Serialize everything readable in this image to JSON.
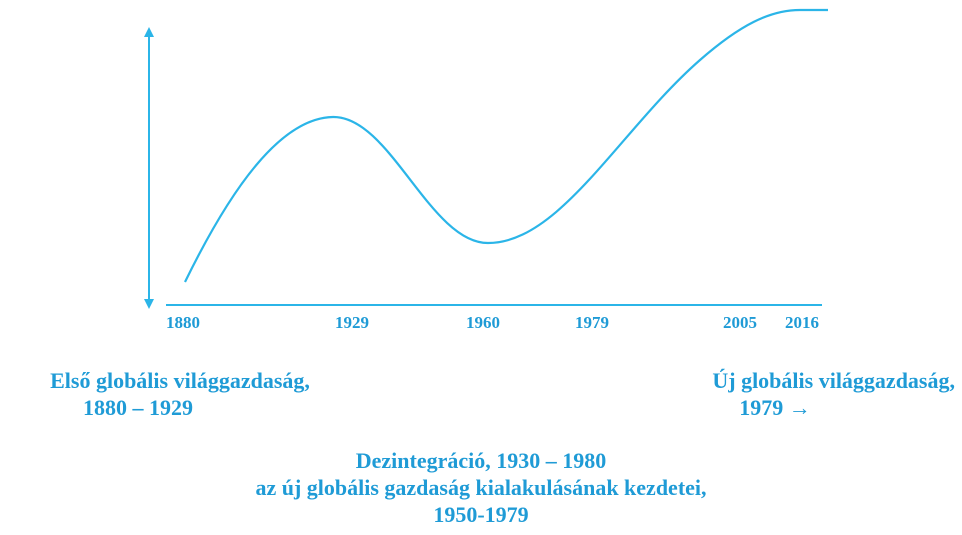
{
  "axis_labels": [
    "1880",
    "1929",
    "1960",
    "1979",
    "2005",
    "2016"
  ],
  "left_caption": [
    "Első globális világgazdaság,",
    "1880 – 1929"
  ],
  "right_caption": [
    "Új globális világgazdaság,",
    "1979 →"
  ],
  "center_caption": [
    "Dezintegráció, 1930 – 1980",
    "az új globális gazdaság kialakulásának kezdetei,",
    "1950-1979"
  ]
}
